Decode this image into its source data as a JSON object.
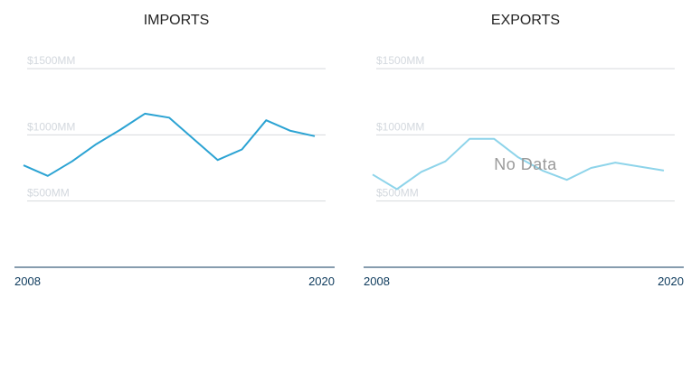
{
  "chart_data": [
    {
      "type": "line",
      "title": "IMPORTS",
      "x": [
        2008,
        2009,
        2010,
        2011,
        2012,
        2013,
        2014,
        2015,
        2016,
        2017,
        2018,
        2019,
        2020
      ],
      "series": [
        {
          "values": [
            770,
            690,
            800,
            930,
            1040,
            1160,
            1130,
            970,
            810,
            890,
            1110,
            1030,
            990
          ]
        }
      ],
      "ylim": [
        0,
        1500
      ],
      "yticks": [
        {
          "value": 500,
          "label": "$500MM"
        },
        {
          "value": 1000,
          "label": "$1000MM"
        },
        {
          "value": 1500,
          "label": "$1500MM"
        }
      ],
      "xtick_labels": [
        "2008",
        "2020"
      ],
      "grid": true,
      "color": "#2ba3d3",
      "overlay_text": ""
    },
    {
      "type": "line",
      "title": "EXPORTS",
      "x": [
        2008,
        2009,
        2010,
        2011,
        2012,
        2013,
        2014,
        2015,
        2016,
        2017,
        2018,
        2019,
        2020
      ],
      "series": [
        {
          "values": [
            700,
            590,
            720,
            800,
            970,
            970,
            830,
            730,
            660,
            750,
            790,
            760,
            730
          ]
        }
      ],
      "ylim": [
        0,
        1500
      ],
      "yticks": [
        {
          "value": 500,
          "label": "$500MM"
        },
        {
          "value": 1000,
          "label": "$1000MM"
        },
        {
          "value": 1500,
          "label": "$1500MM"
        }
      ],
      "xtick_labels": [
        "2008",
        "2020"
      ],
      "grid": true,
      "color": "#8ed4ea",
      "overlay_text": "No Data"
    }
  ]
}
